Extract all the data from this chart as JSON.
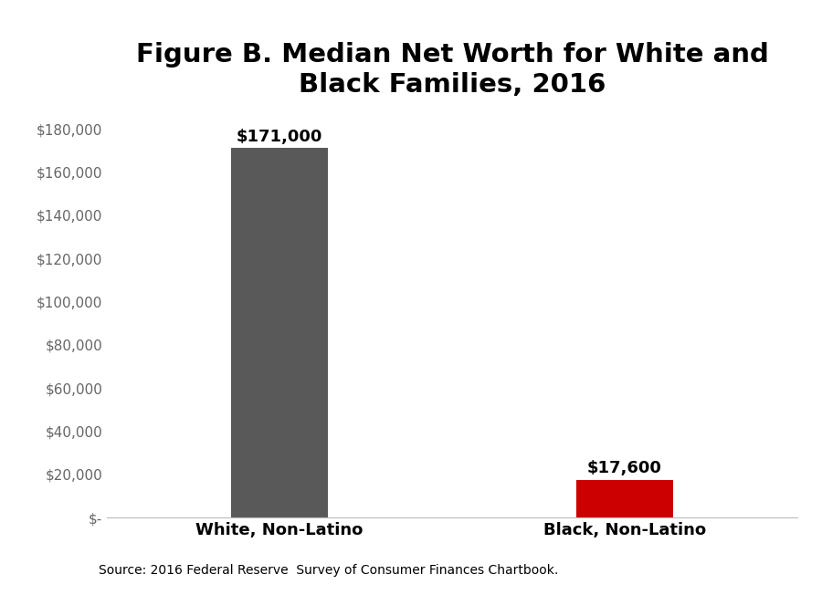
{
  "title": "Figure B. Median Net Worth for White and\nBlack Families, 2016",
  "categories": [
    "White, Non-Latino",
    "Black, Non-Latino"
  ],
  "values": [
    171000,
    17600
  ],
  "bar_colors": [
    "#595959",
    "#cc0000"
  ],
  "bar_labels": [
    "$171,000",
    "$17,600"
  ],
  "ylim": [
    0,
    190000
  ],
  "yticks": [
    0,
    20000,
    40000,
    60000,
    80000,
    100000,
    120000,
    140000,
    160000,
    180000
  ],
  "ytick_labels": [
    "$-",
    "$20,000",
    "$40,000",
    "$60,000",
    "$80,000",
    "$100,000",
    "$120,000",
    "$140,000",
    "$160,000",
    "$180,000"
  ],
  "source_text": "Source: 2016 Federal Reserve  Survey of Consumer Finances Chartbook.",
  "background_color": "#ffffff",
  "title_fontsize": 21,
  "bar_label_fontsize": 13,
  "xtick_fontsize": 13,
  "ytick_fontsize": 11,
  "source_fontsize": 10,
  "bar_width": 0.28,
  "xlim": [
    -0.5,
    1.5
  ]
}
